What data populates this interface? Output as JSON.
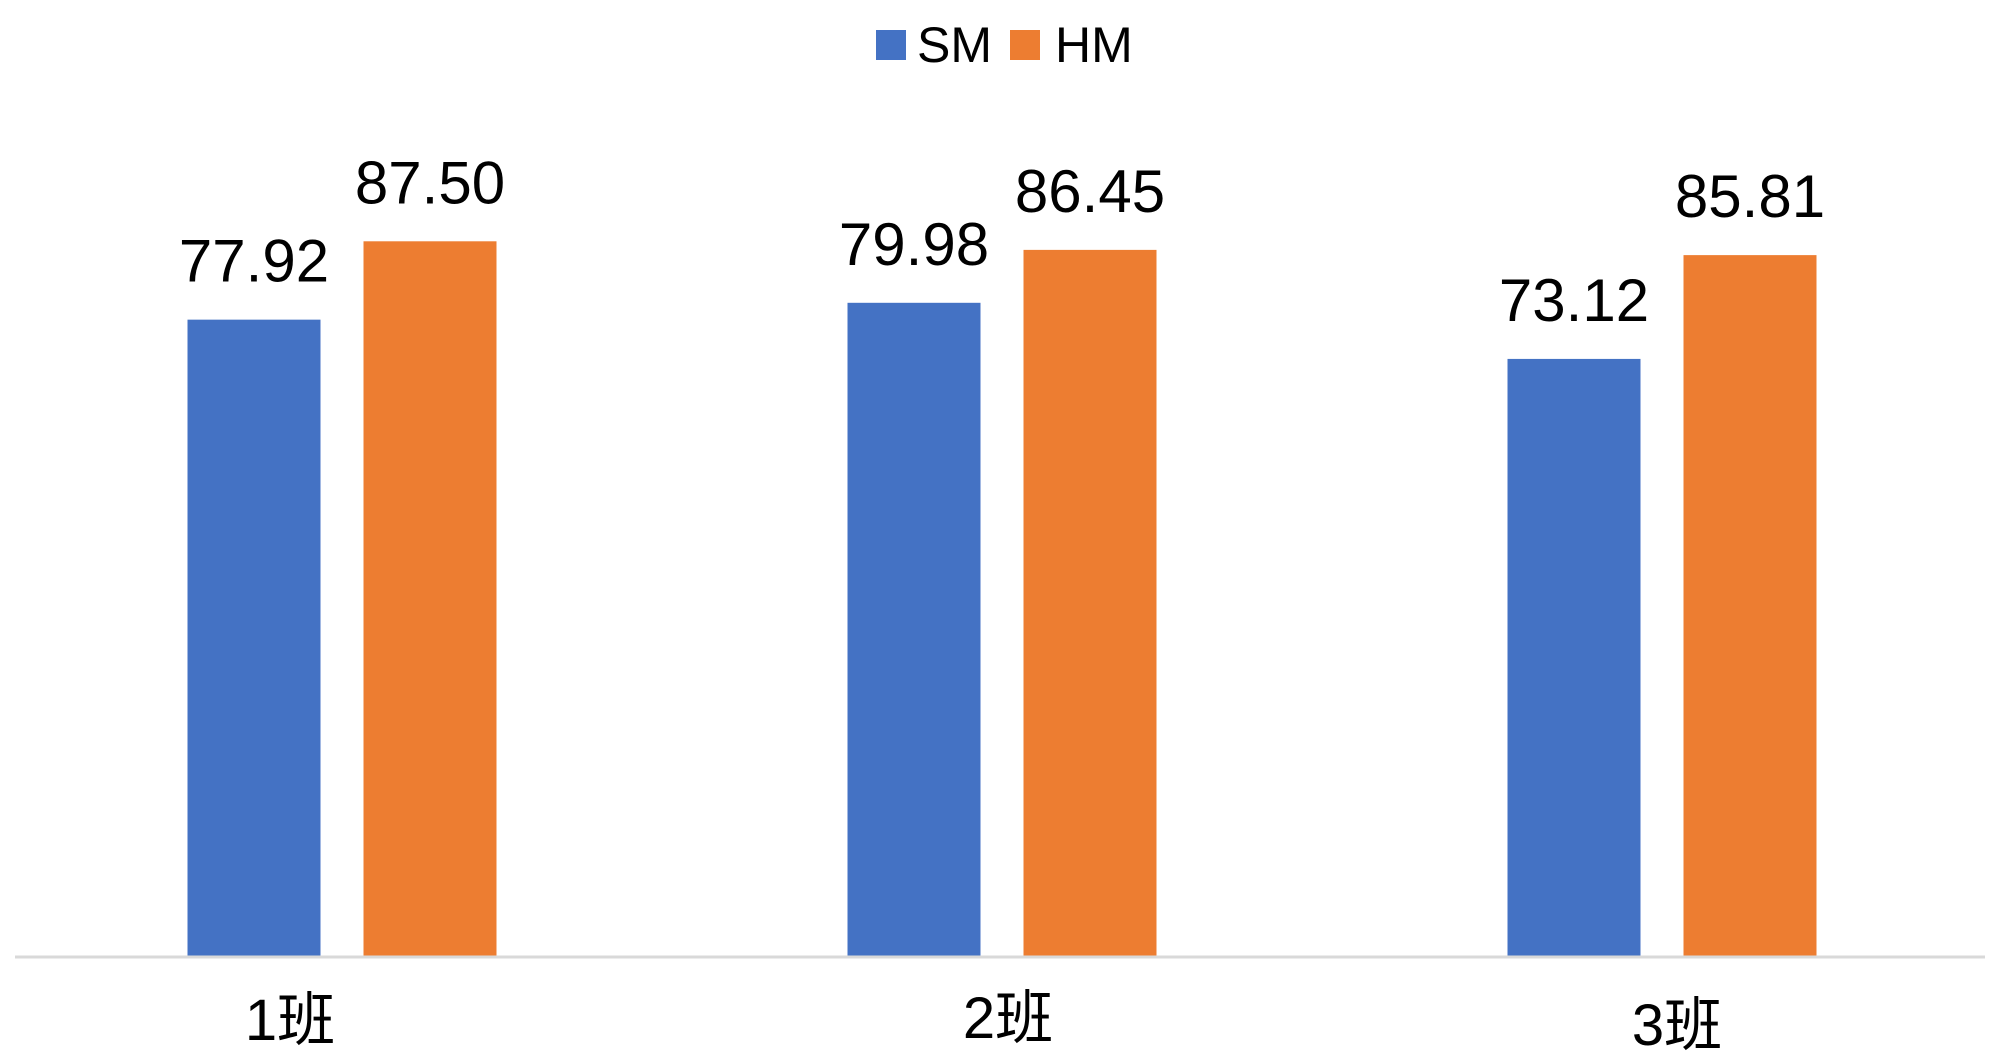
{
  "chart_data": {
    "type": "bar",
    "categories": [
      "1班",
      "2班",
      "3班"
    ],
    "series": [
      {
        "name": "SM",
        "values": [
          77.92,
          79.98,
          73.12
        ],
        "value_labels": [
          "77.92",
          "79.98",
          "73.12"
        ],
        "color": "#4472C4"
      },
      {
        "name": "HM",
        "values": [
          87.5,
          86.45,
          85.81
        ],
        "value_labels": [
          "87.50",
          "86.45",
          "85.81"
        ],
        "color": "#ED7D31"
      }
    ],
    "title": "",
    "xlabel": "",
    "ylabel": "",
    "ylim": [
      0,
      117
    ],
    "grid": false,
    "legend": "top-center",
    "axis_color": "#D9D9D9"
  }
}
